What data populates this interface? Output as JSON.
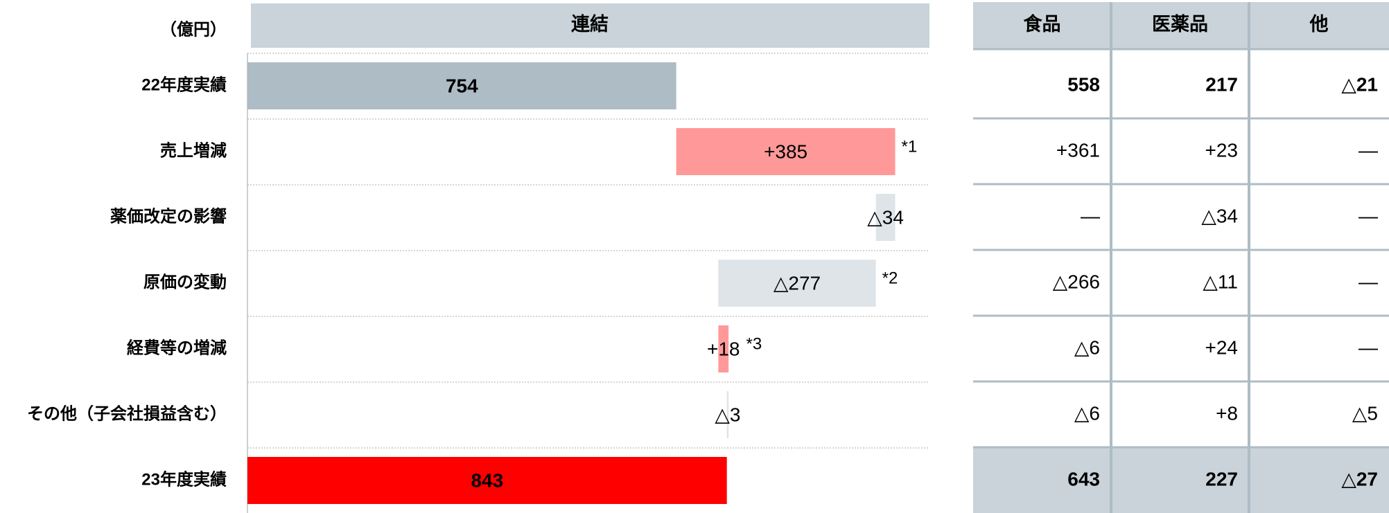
{
  "unit_label": "（億円）",
  "chart_data": {
    "type": "waterfall",
    "title": "連結",
    "categories": [
      "22年度実績",
      "売上増減",
      "薬価改定の影響",
      "原価の変動",
      "経費等の増減",
      "その他（子会社損益含む）",
      "23年度実績"
    ],
    "values": [
      754,
      385,
      -34,
      -277,
      18,
      -3,
      843
    ],
    "value_labels": [
      "754",
      "+385",
      "△34",
      "△277",
      "+18",
      "△3",
      "843"
    ],
    "colors": [
      "#adbcc5",
      "#ff9999",
      "#dfe4e8",
      "#dfe4e8",
      "#ff9999",
      "#dfe4e8",
      "#ff0000"
    ],
    "annotations": [
      null,
      "*1",
      null,
      "*2",
      "*3",
      null,
      null
    ]
  },
  "table": {
    "columns": [
      "食品",
      "医薬品",
      "他"
    ],
    "rows": [
      [
        "558",
        "217",
        "△21"
      ],
      [
        "+361",
        "+23",
        "—"
      ],
      [
        "—",
        "△34",
        "—"
      ],
      [
        "△266",
        "△11",
        "—"
      ],
      [
        "△6",
        "+24",
        "—"
      ],
      [
        "△6",
        "+8",
        "△5"
      ],
      [
        "643",
        "227",
        "△27"
      ]
    ]
  }
}
